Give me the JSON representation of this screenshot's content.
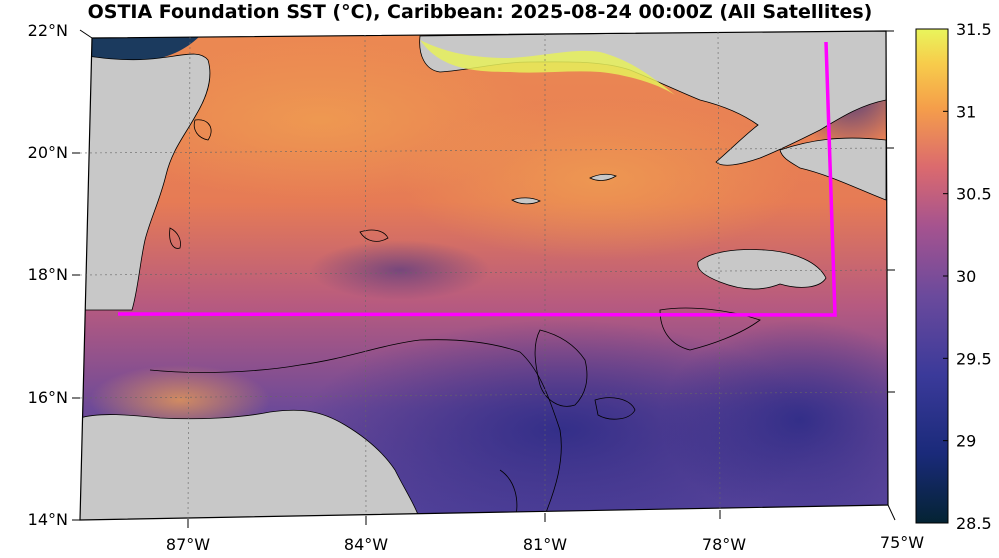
{
  "title": "OSTIA Foundation SST (°C), Caribbean: 2025-08-24 00:00Z (All Satellites)",
  "map": {
    "lat_labels": [
      "22°N",
      "20°N",
      "18°N",
      "16°N",
      "14°N"
    ],
    "lon_labels": [
      "87°W",
      "84°W",
      "81°W",
      "78°W",
      "75°W"
    ],
    "extent": {
      "lon_min": -89,
      "lon_max": -75,
      "lat_min": 14,
      "lat_max": 22
    },
    "highlight_color": "#ff00ff",
    "land_color": "#c8c8c8"
  },
  "colorbar": {
    "min": 28.5,
    "max": 31.5,
    "ticks": [
      "31.5",
      "31",
      "30.5",
      "30",
      "29.5",
      "29",
      "28.5"
    ],
    "colormap": "thermal"
  }
}
